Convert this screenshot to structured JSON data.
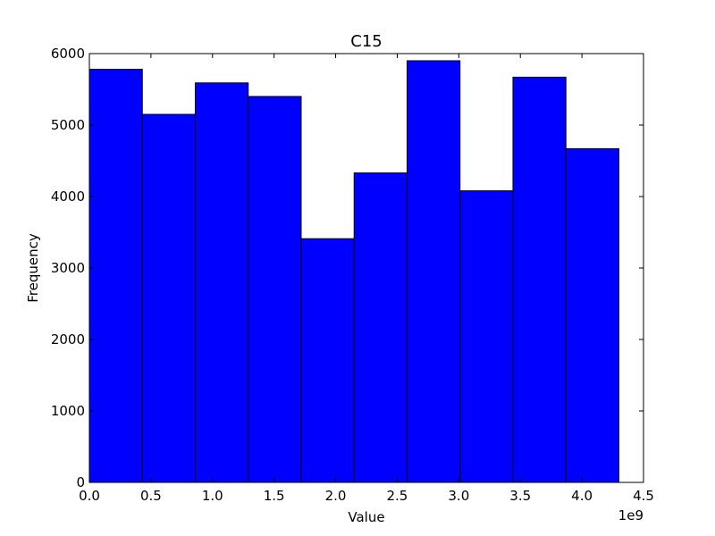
{
  "chart_data": {
    "type": "bar",
    "title": "C15",
    "xlabel": "Value",
    "ylabel": "Frequency",
    "x_offset_label": "1e9",
    "bin_edges": [
      0.0,
      0.43,
      0.86,
      1.29,
      1.72,
      2.15,
      2.58,
      3.01,
      3.44,
      3.87,
      4.3
    ],
    "values": [
      5780,
      5150,
      5590,
      5400,
      3410,
      4330,
      5900,
      4080,
      5670,
      4670
    ],
    "xlim": [
      0,
      4.5
    ],
    "ylim": [
      0,
      6000
    ],
    "xticks": [
      0.0,
      0.5,
      1.0,
      1.5,
      2.0,
      2.5,
      3.0,
      3.5,
      4.0,
      4.5
    ],
    "xtick_labels": [
      "0.0",
      "0.5",
      "1.0",
      "1.5",
      "2.0",
      "2.5",
      "3.0",
      "3.5",
      "4.0",
      "4.5"
    ],
    "yticks": [
      0,
      1000,
      2000,
      3000,
      4000,
      5000,
      6000
    ],
    "ytick_labels": [
      "0",
      "1000",
      "2000",
      "3000",
      "4000",
      "5000",
      "6000"
    ],
    "bar_color": "#0000ff",
    "edge_color": "#000000",
    "grid": false
  }
}
